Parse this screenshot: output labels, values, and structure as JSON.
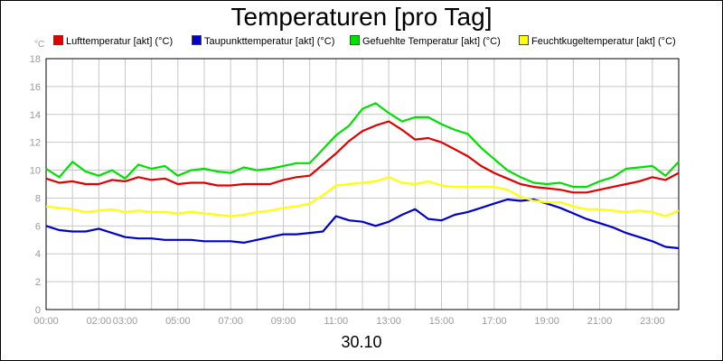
{
  "title": "Temperaturen [pro Tag]",
  "date_label": "30.10",
  "y_unit": "°C",
  "colors": {
    "lufttemperatur": "#e00000",
    "taupunkttemperatur": "#0000cc",
    "gefuehlte": "#00e000",
    "feuchtkugel": "#ffff00",
    "grid": "#c8c8c8",
    "tick_text": "#9a9a9a"
  },
  "chart_data": {
    "type": "line",
    "title": "Temperaturen [pro Tag]",
    "xlabel": "30.10",
    "ylabel": "°C",
    "ylim": [
      0,
      18
    ],
    "xlim": [
      0,
      24
    ],
    "grid": true,
    "legend_position": "top",
    "y_ticks": [
      "0",
      "2",
      "4",
      "6",
      "8",
      "10",
      "12",
      "14",
      "16",
      "18"
    ],
    "x_ticks": [
      {
        "h": 0,
        "label": "00:00"
      },
      {
        "h": 2,
        "label": "02:00"
      },
      {
        "h": 3,
        "label": "03:00"
      },
      {
        "h": 5,
        "label": "05:00"
      },
      {
        "h": 7,
        "label": "07:00"
      },
      {
        "h": 9,
        "label": "09:00"
      },
      {
        "h": 11,
        "label": "11:00"
      },
      {
        "h": 13,
        "label": "13:00"
      },
      {
        "h": 15,
        "label": "15:00"
      },
      {
        "h": 17,
        "label": "17:00"
      },
      {
        "h": 19,
        "label": "19:00"
      },
      {
        "h": 21,
        "label": "21:00"
      },
      {
        "h": 23,
        "label": "23:00"
      }
    ],
    "x": [
      0,
      0.5,
      1,
      1.5,
      2,
      2.5,
      3,
      3.5,
      4,
      4.5,
      5,
      5.5,
      6,
      6.5,
      7,
      7.5,
      8,
      8.5,
      9,
      9.5,
      10,
      10.5,
      11,
      11.5,
      12,
      12.5,
      13,
      13.5,
      14,
      14.5,
      15,
      15.5,
      16,
      16.5,
      17,
      17.5,
      18,
      18.5,
      19,
      19.5,
      20,
      20.5,
      21,
      21.5,
      22,
      22.5,
      23,
      23.5,
      24
    ],
    "series": [
      {
        "name": "Lufttemperatur [akt] (°C)",
        "color_key": "lufttemperatur",
        "values": [
          9.4,
          9.1,
          9.2,
          9.0,
          9.0,
          9.3,
          9.2,
          9.5,
          9.3,
          9.4,
          9.0,
          9.1,
          9.1,
          8.9,
          8.9,
          9.0,
          9.0,
          9.0,
          9.3,
          9.5,
          9.6,
          10.4,
          11.2,
          12.1,
          12.8,
          13.2,
          13.5,
          12.9,
          12.2,
          12.3,
          12.0,
          11.5,
          11.0,
          10.3,
          9.8,
          9.4,
          9.0,
          8.8,
          8.7,
          8.6,
          8.4,
          8.4,
          8.6,
          8.8,
          9.0,
          9.2,
          9.5,
          9.3,
          9.8
        ]
      },
      {
        "name": "Taupunkttemperatur [akt] (°C)",
        "color_key": "taupunkttemperatur",
        "values": [
          6.0,
          5.7,
          5.6,
          5.6,
          5.8,
          5.5,
          5.2,
          5.1,
          5.1,
          5.0,
          5.0,
          5.0,
          4.9,
          4.9,
          4.9,
          4.8,
          5.0,
          5.2,
          5.4,
          5.4,
          5.5,
          5.6,
          6.7,
          6.4,
          6.3,
          6.0,
          6.3,
          6.8,
          7.2,
          6.5,
          6.4,
          6.8,
          7.0,
          7.3,
          7.6,
          7.9,
          7.8,
          7.9,
          7.6,
          7.3,
          6.9,
          6.5,
          6.2,
          5.9,
          5.5,
          5.2,
          4.9,
          4.5,
          4.4
        ]
      },
      {
        "name": "Gefuehlte Temperatur [akt] (°C)",
        "color_key": "gefuehlte",
        "values": [
          10.1,
          9.5,
          10.6,
          9.9,
          9.6,
          10.0,
          9.4,
          10.4,
          10.1,
          10.3,
          9.6,
          10.0,
          10.1,
          9.9,
          9.8,
          10.2,
          10.0,
          10.1,
          10.3,
          10.5,
          10.5,
          11.5,
          12.5,
          13.2,
          14.4,
          14.8,
          14.1,
          13.5,
          13.8,
          13.8,
          13.3,
          12.9,
          12.6,
          11.6,
          10.8,
          10.0,
          9.5,
          9.1,
          9.0,
          9.1,
          8.8,
          8.8,
          9.2,
          9.5,
          10.1,
          10.2,
          10.3,
          9.6,
          10.6
        ]
      },
      {
        "name": "Feuchtkugeltemperatur [akt] (°C)",
        "color_key": "feuchtkugel",
        "values": [
          7.4,
          7.3,
          7.2,
          7.0,
          7.1,
          7.2,
          7.0,
          7.1,
          7.0,
          7.0,
          6.9,
          7.0,
          6.9,
          6.8,
          6.7,
          6.8,
          7.0,
          7.1,
          7.3,
          7.4,
          7.6,
          8.2,
          8.9,
          9.0,
          9.1,
          9.2,
          9.5,
          9.1,
          9.0,
          9.2,
          8.9,
          8.8,
          8.8,
          8.8,
          8.8,
          8.6,
          8.1,
          7.8,
          7.7,
          7.7,
          7.4,
          7.2,
          7.2,
          7.1,
          7.0,
          7.1,
          7.0,
          6.7,
          7.1
        ]
      }
    ]
  }
}
